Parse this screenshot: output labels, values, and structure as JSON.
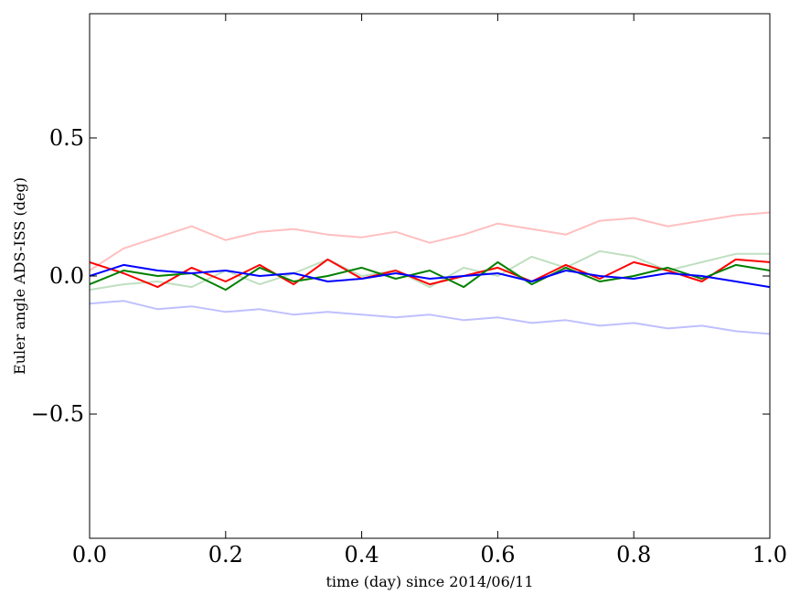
{
  "chart_data": {
    "type": "line",
    "title": "",
    "xlabel": "time (day) since 2014/06/11",
    "ylabel": "Euler angle ADS-ISS (deg)",
    "xlim": [
      0.0,
      1.0
    ],
    "ylim": [
      -0.95,
      0.95
    ],
    "xticks": [
      0.0,
      0.2,
      0.4,
      0.6,
      0.8,
      1.0
    ],
    "xtick_labels": [
      "0.0",
      "0.2",
      "0.4",
      "0.6",
      "0.8",
      "1.0"
    ],
    "yticks": [
      -0.5,
      0.0,
      0.5
    ],
    "ytick_labels": [
      "−0.5",
      "0.0",
      "0.5"
    ],
    "grid": false,
    "legend": "none",
    "x": [
      0.0,
      0.05,
      0.1,
      0.15,
      0.2,
      0.25,
      0.3,
      0.35,
      0.4,
      0.45,
      0.5,
      0.55,
      0.6,
      0.65,
      0.7,
      0.75,
      0.8,
      0.85,
      0.9,
      0.95,
      1.0
    ],
    "series": [
      {
        "color": "#ff0000",
        "opacity": 1.0,
        "values": [
          0.05,
          0.01,
          -0.04,
          0.03,
          -0.02,
          0.04,
          -0.03,
          0.06,
          -0.01,
          0.02,
          -0.03,
          0.0,
          0.03,
          -0.02,
          0.04,
          -0.01,
          0.05,
          0.02,
          -0.02,
          0.06,
          0.05
        ]
      },
      {
        "color": "#008000",
        "opacity": 1.0,
        "values": [
          -0.03,
          0.02,
          0.0,
          0.01,
          -0.05,
          0.03,
          -0.02,
          0.0,
          0.03,
          -0.01,
          0.02,
          -0.04,
          0.05,
          -0.03,
          0.03,
          -0.02,
          0.0,
          0.03,
          -0.01,
          0.04,
          0.02
        ]
      },
      {
        "color": "#0000ff",
        "opacity": 1.0,
        "values": [
          0.0,
          0.04,
          0.02,
          0.01,
          0.02,
          0.0,
          0.01,
          -0.02,
          -0.01,
          0.01,
          -0.01,
          0.0,
          0.01,
          -0.02,
          0.02,
          0.0,
          -0.01,
          0.01,
          0.0,
          -0.02,
          -0.04
        ]
      },
      {
        "color": "#ff0000",
        "opacity": 0.25,
        "values": [
          0.02,
          0.1,
          0.14,
          0.18,
          0.13,
          0.16,
          0.17,
          0.15,
          0.14,
          0.16,
          0.12,
          0.15,
          0.19,
          0.17,
          0.15,
          0.2,
          0.21,
          0.18,
          0.2,
          0.22,
          0.23
        ]
      },
      {
        "color": "#008000",
        "opacity": 0.25,
        "values": [
          -0.05,
          -0.03,
          -0.02,
          -0.04,
          0.02,
          -0.03,
          0.01,
          0.06,
          0.0,
          0.02,
          -0.04,
          0.03,
          0.0,
          0.07,
          0.03,
          0.09,
          0.07,
          0.02,
          0.05,
          0.08,
          0.08
        ]
      },
      {
        "color": "#0000ff",
        "opacity": 0.25,
        "values": [
          -0.1,
          -0.09,
          -0.12,
          -0.11,
          -0.13,
          -0.12,
          -0.14,
          -0.13,
          -0.14,
          -0.15,
          -0.14,
          -0.16,
          -0.15,
          -0.17,
          -0.16,
          -0.18,
          -0.17,
          -0.19,
          -0.18,
          -0.2,
          -0.21
        ]
      }
    ]
  }
}
